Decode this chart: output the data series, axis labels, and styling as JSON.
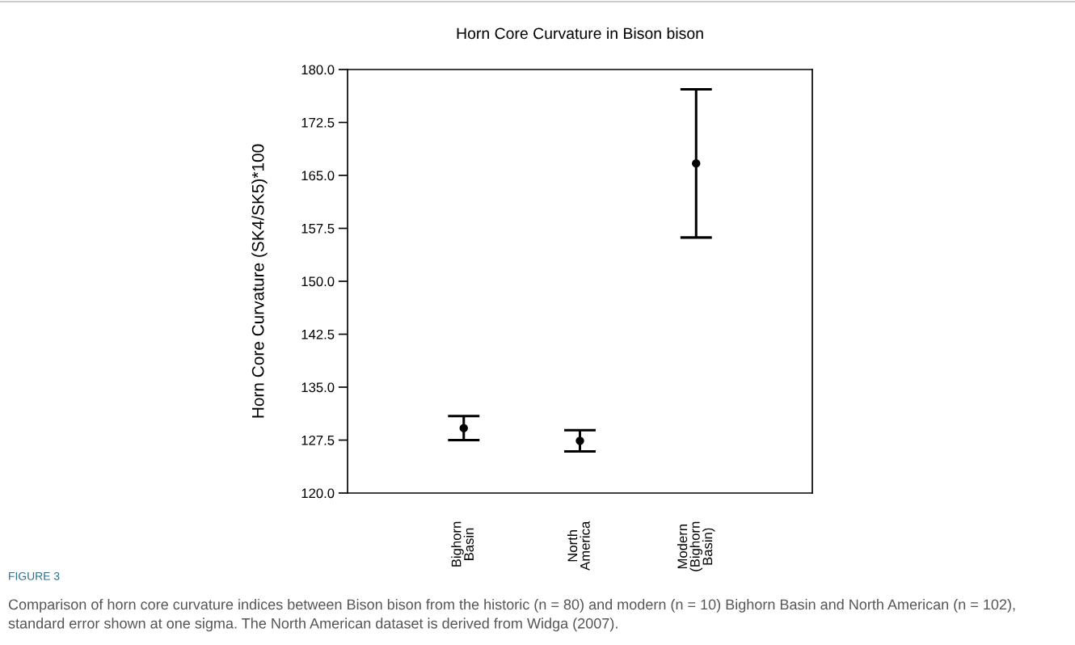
{
  "chart_data": {
    "type": "scatter",
    "title": "Horn Core Curvature in Bison bison",
    "ylabel": "Horn Core Curvature (SK4/SK5)*100",
    "categories": [
      "Bighorn\nBasin",
      "North\nAmerica",
      "Modern\n(Bighorn\nBasin)"
    ],
    "values": [
      129.2,
      127.4,
      166.7
    ],
    "errors": [
      1.7,
      1.5,
      10.5
    ],
    "color": "#000000",
    "marker": "circle",
    "grid": false,
    "legend": false,
    "ylim": [
      120.0,
      180.0
    ],
    "yticks": [
      {
        "value": 120,
        "label": "120.0"
      },
      {
        "value": 127.5,
        "label": "127.5"
      },
      {
        "value": 135,
        "label": "135.0"
      },
      {
        "value": 142.5,
        "label": "142.5"
      },
      {
        "value": 150,
        "label": "150.0"
      },
      {
        "value": 157.5,
        "label": "157.5"
      },
      {
        "value": 165,
        "label": "165.0"
      },
      {
        "value": 172.5,
        "label": "172.5"
      },
      {
        "value": 180,
        "label": "180.0"
      }
    ],
    "annotations": [
      "FIGURE 3",
      "Comparison of horn core curvature indices between Bison bison from the historic (n = 80) and modern (n = 10) Bighorn Basin and North American (n = 102), standard error shown at one sigma. The North American dataset is derived from Widga (2007)."
    ]
  }
}
